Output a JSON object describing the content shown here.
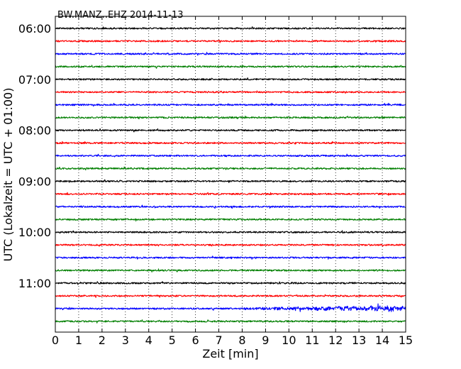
{
  "chart_data": {
    "type": "line",
    "title": "BW.MANZ..EHZ 2014-11-13",
    "xlabel": "Zeit  [min]",
    "ylabel": "UTC (Lokalzeit = UTC + 01:00)",
    "xlim": [
      0,
      15
    ],
    "x_ticks": [
      "0",
      "1",
      "2",
      "3",
      "4",
      "5",
      "6",
      "7",
      "8",
      "9",
      "10",
      "11",
      "12",
      "13",
      "14",
      "15"
    ],
    "y_tick_labels": [
      "06:00",
      "07:00",
      "08:00",
      "09:00",
      "10:00",
      "11:00"
    ],
    "grid": "vertical dotted at each minute",
    "trace_interval_min": 15,
    "series_colors": [
      "#000000",
      "#ff0000",
      "#0000ff",
      "#007f00"
    ],
    "series": [
      {
        "start": "06:00",
        "color": "#000000"
      },
      {
        "start": "06:15",
        "color": "#ff0000"
      },
      {
        "start": "06:30",
        "color": "#0000ff"
      },
      {
        "start": "06:45",
        "color": "#007f00"
      },
      {
        "start": "07:00",
        "color": "#000000"
      },
      {
        "start": "07:15",
        "color": "#ff0000"
      },
      {
        "start": "07:30",
        "color": "#0000ff"
      },
      {
        "start": "07:45",
        "color": "#007f00"
      },
      {
        "start": "08:00",
        "color": "#000000"
      },
      {
        "start": "08:15",
        "color": "#ff0000"
      },
      {
        "start": "08:30",
        "color": "#0000ff"
      },
      {
        "start": "08:45",
        "color": "#007f00"
      },
      {
        "start": "09:00",
        "color": "#000000"
      },
      {
        "start": "09:15",
        "color": "#ff0000"
      },
      {
        "start": "09:30",
        "color": "#0000ff"
      },
      {
        "start": "09:45",
        "color": "#007f00"
      },
      {
        "start": "10:00",
        "color": "#000000"
      },
      {
        "start": "10:15",
        "color": "#ff0000"
      },
      {
        "start": "10:30",
        "color": "#0000ff"
      },
      {
        "start": "10:45",
        "color": "#007f00"
      },
      {
        "start": "11:00",
        "color": "#000000"
      },
      {
        "start": "11:15",
        "color": "#ff0000"
      },
      {
        "start": "11:30",
        "color": "#0000ff"
      },
      {
        "start": "11:45",
        "color": "#007f00"
      }
    ]
  }
}
